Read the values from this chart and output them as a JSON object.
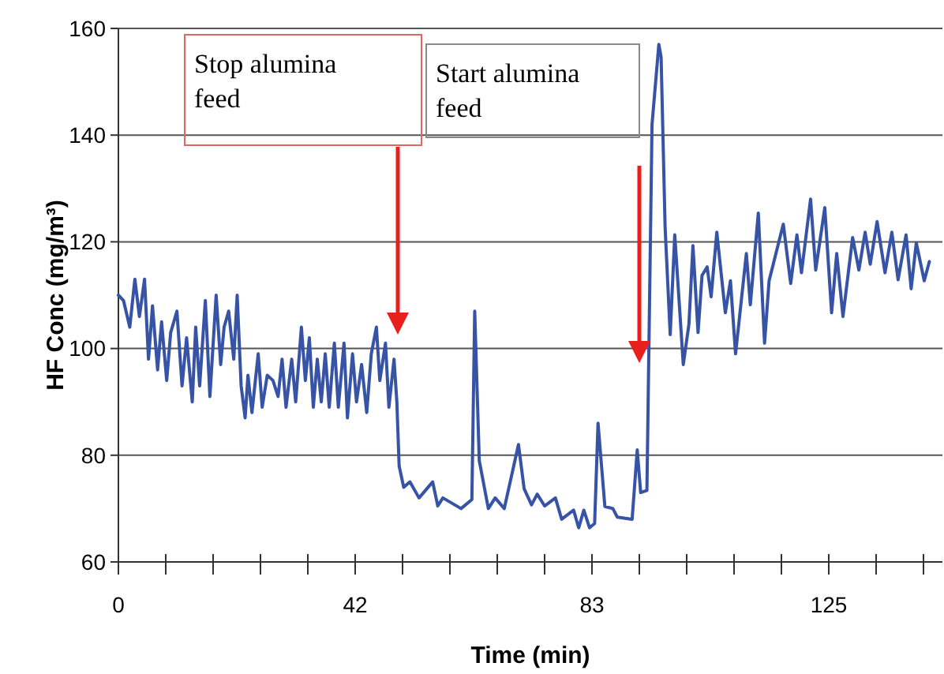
{
  "chart_data": {
    "type": "line",
    "xlabel": "Time (min)",
    "ylabel": "HF Conc (mg/m³)",
    "xlim": [
      0,
      145
    ],
    "xticks": [
      0,
      {
        "value": 8.33,
        "label": null
      },
      {
        "value": 16.67,
        "label": null
      },
      {
        "value": 25,
        "label": null
      },
      {
        "value": 33.33,
        "label": null
      },
      {
        "value": 41.67,
        "label": "42"
      },
      {
        "value": 50,
        "label": null
      },
      {
        "value": 58.33,
        "label": null
      },
      {
        "value": 66.67,
        "label": null
      },
      {
        "value": 75,
        "label": null
      },
      {
        "value": 83.33,
        "label": "83"
      },
      {
        "value": 91.67,
        "label": null
      },
      {
        "value": 100,
        "label": null
      },
      {
        "value": 108.33,
        "label": null
      },
      {
        "value": 116.67,
        "label": null
      },
      {
        "value": 125,
        "label": "125"
      },
      {
        "value": 133.33,
        "label": null
      },
      {
        "value": 141.67,
        "label": null
      }
    ],
    "ylim": [
      60,
      160
    ],
    "yticks": [
      60,
      80,
      100,
      120,
      140,
      160
    ],
    "grid": "y",
    "marker": "none",
    "line_style": "solid",
    "series": [
      {
        "color": "#3653a6",
        "x": [
          0,
          0.9,
          2.0,
          2.9,
          3.7,
          4.6,
          5.3,
          6.0,
          6.9,
          7.6,
          8.5,
          9.2,
          10.3,
          11.2,
          12.0,
          13.0,
          13.6,
          14.3,
          15.3,
          16.1,
          17.2,
          18.0,
          18.6,
          19.4,
          20.3,
          20.9,
          21.6,
          22.3,
          22.8,
          23.5,
          24.6,
          25.3,
          26.2,
          27.2,
          28.1,
          28.8,
          29.5,
          30.5,
          31.2,
          32.2,
          32.9,
          33.6,
          34.3,
          35.0,
          35.7,
          36.4,
          37.1,
          38.0,
          38.7,
          39.7,
          40.3,
          41.2,
          41.9,
          42.8,
          43.7,
          44.5,
          45.4,
          46.0,
          47.0,
          47.6,
          48.5,
          49.0,
          49.4,
          50.2,
          51.3,
          52.9,
          55.3,
          56.2,
          57.1,
          60.3,
          62.2,
          62.7,
          63.5,
          65.1,
          66.3,
          67.9,
          70.4,
          71.4,
          72.7,
          73.7,
          75.0,
          76.9,
          78.0,
          80.1,
          81.0,
          81.9,
          82.9,
          83.8,
          84.4,
          85.6,
          87.0,
          87.8,
          90.4,
          91.3,
          91.9,
          93.0,
          93.9,
          95.1,
          95.5,
          96.2,
          97.1,
          97.9,
          99.4,
          100.4,
          101.1,
          102.0,
          102.7,
          103.6,
          104.3,
          105.3,
          106.8,
          107.7,
          108.6,
          110.5,
          111.2,
          112.6,
          113.7,
          114.5,
          117.0,
          118.3,
          119.4,
          120.2,
          121.8,
          122.7,
          124.3,
          125.5,
          126.4,
          127.5,
          129.2,
          130.3,
          131.4,
          132.3,
          133.5,
          134.9,
          136.1,
          137.2,
          138.6,
          139.5,
          140.4,
          141.8,
          142.7
        ],
        "values": [
          110,
          109,
          104,
          113,
          106,
          113,
          98,
          108,
          96,
          105,
          94,
          103,
          107,
          93,
          102,
          90,
          104,
          93,
          109,
          91,
          110,
          97,
          104,
          107,
          98,
          110,
          93,
          87,
          95,
          88,
          99,
          89,
          95,
          94,
          91,
          98,
          89,
          98,
          90,
          104,
          94,
          102,
          89,
          98,
          90,
          99,
          89,
          101,
          89,
          101,
          87,
          99,
          90,
          97,
          88,
          99,
          104,
          94,
          101,
          89,
          98,
          90,
          78,
          74,
          75,
          72,
          75,
          70.5,
          72,
          70,
          71.7,
          107,
          79,
          70,
          72,
          70,
          82,
          73.7,
          70.7,
          72.7,
          70.5,
          72,
          68,
          69.7,
          66.4,
          69.7,
          66.4,
          67.2,
          86,
          70.4,
          70,
          68.4,
          68,
          81,
          73,
          73.4,
          142,
          157,
          154.6,
          122.8,
          102.6,
          121.3,
          97,
          104.6,
          119.3,
          103,
          113.7,
          115.3,
          109.7,
          121.8,
          106.7,
          112.7,
          99,
          117.8,
          108.2,
          125.4,
          101,
          112.7,
          123.3,
          112.2,
          121.3,
          114.2,
          128,
          114.7,
          126.4,
          106.7,
          117.8,
          106,
          120.8,
          114.7,
          121.8,
          115.8,
          123.8,
          114.2,
          121.8,
          112.9,
          121.3,
          111.2,
          119.8,
          112.7,
          116.3
        ]
      }
    ],
    "annotations": [
      "Stop alumina feed",
      "Start alumina feed"
    ]
  }
}
